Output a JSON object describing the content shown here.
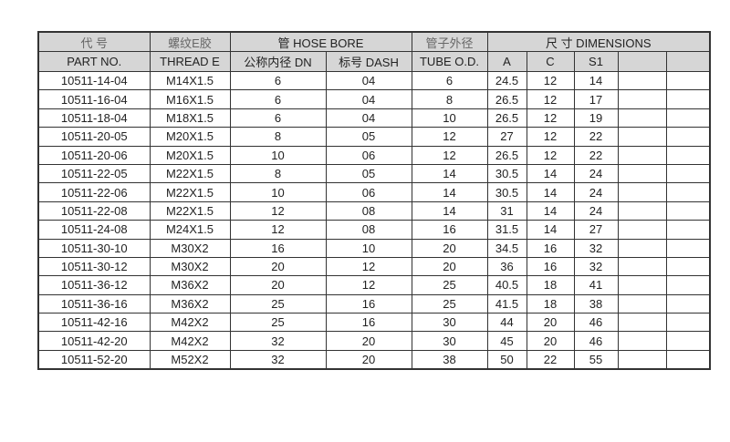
{
  "header": {
    "row1": {
      "part_no": "代 号",
      "thread": "螺纹E胶",
      "hose_bore": "管 HOSE BORE",
      "tube_od": "管子外径",
      "dimensions": "尺 寸 DIMENSIONS"
    },
    "row2": {
      "part_no": "PART NO.",
      "thread": "THREAD  E",
      "dn": "公称内径 DN",
      "dash": "标号 DASH",
      "tube_od": "TUBE O.D.",
      "a": "A",
      "c": "C",
      "s1": "S1",
      "blank1": "",
      "blank2": ""
    }
  },
  "rows": [
    [
      "10511-14-04",
      "M14X1.5",
      "6",
      "04",
      "6",
      "24.5",
      "12",
      "14"
    ],
    [
      "10511-16-04",
      "M16X1.5",
      "6",
      "04",
      "8",
      "26.5",
      "12",
      "17"
    ],
    [
      "10511-18-04",
      "M18X1.5",
      "6",
      "04",
      "10",
      "26.5",
      "12",
      "19"
    ],
    [
      "10511-20-05",
      "M20X1.5",
      "8",
      "05",
      "12",
      "27",
      "12",
      "22"
    ],
    [
      "10511-20-06",
      "M20X1.5",
      "10",
      "06",
      "12",
      "26.5",
      "12",
      "22"
    ],
    [
      "10511-22-05",
      "M22X1.5",
      "8",
      "05",
      "14",
      "30.5",
      "14",
      "24"
    ],
    [
      "10511-22-06",
      "M22X1.5",
      "10",
      "06",
      "14",
      "30.5",
      "14",
      "24"
    ],
    [
      "10511-22-08",
      "M22X1.5",
      "12",
      "08",
      "14",
      "31",
      "14",
      "24"
    ],
    [
      "10511-24-08",
      "M24X1.5",
      "12",
      "08",
      "16",
      "31.5",
      "14",
      "27"
    ],
    [
      "10511-30-10",
      "M30X2",
      "16",
      "10",
      "20",
      "34.5",
      "16",
      "32"
    ],
    [
      "10511-30-12",
      "M30X2",
      "20",
      "12",
      "20",
      "36",
      "16",
      "32"
    ],
    [
      "10511-36-12",
      "M36X2",
      "20",
      "12",
      "25",
      "40.5",
      "18",
      "41"
    ],
    [
      "10511-36-16",
      "M36X2",
      "25",
      "16",
      "25",
      "41.5",
      "18",
      "38"
    ],
    [
      "10511-42-16",
      "M42X2",
      "25",
      "16",
      "30",
      "44",
      "20",
      "46"
    ],
    [
      "10511-42-20",
      "M42X2",
      "32",
      "20",
      "30",
      "45",
      "20",
      "46"
    ],
    [
      "10511-52-20",
      "M52X2",
      "32",
      "20",
      "38",
      "50",
      "22",
      "55"
    ]
  ]
}
